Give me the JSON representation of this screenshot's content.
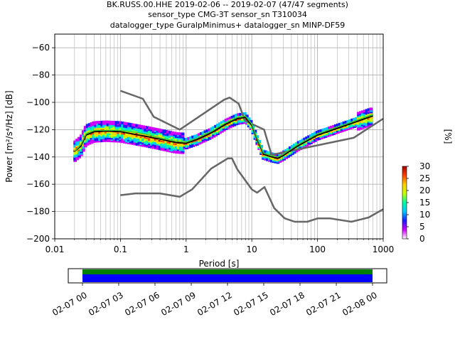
{
  "chart_data": {
    "type": "line",
    "title_lines": [
      "BK.RUSS.00.HHE   2019-02-06 -- 2019-02-07  (47/47 segments)",
      "sensor_type CMG-3T sensor_sn T310034",
      "datalogger_type GuralpMinimus+ datalogger_sn MINP-DF59"
    ],
    "xlabel": "Period [s]",
    "ylabel": "Power [m²/s⁴/Hz] [dB]",
    "x_scale": "log",
    "xlim": [
      0.01,
      1000
    ],
    "ylim": [
      -200,
      -50
    ],
    "x_ticks": [
      {
        "value": 0.01,
        "label": "0.01"
      },
      {
        "value": 0.1,
        "label": "0.1"
      },
      {
        "value": 1,
        "label": "1"
      },
      {
        "value": 10,
        "label": "10"
      },
      {
        "value": 100,
        "label": "100"
      },
      {
        "value": 1000,
        "label": "1000"
      }
    ],
    "y_ticks": [
      {
        "value": -60,
        "label": "−60"
      },
      {
        "value": -80,
        "label": "−80"
      },
      {
        "value": -100,
        "label": "−100"
      },
      {
        "value": -120,
        "label": "−120"
      },
      {
        "value": -140,
        "label": "−140"
      },
      {
        "value": -160,
        "label": "−160"
      },
      {
        "value": -180,
        "label": "−180"
      },
      {
        "value": -200,
        "label": "−200"
      }
    ],
    "grid": true,
    "series": [
      {
        "role": "high_noise_model",
        "color": "#666666",
        "points": [
          [
            0.1,
            -91.5
          ],
          [
            0.22,
            -97.4
          ],
          [
            0.32,
            -110.5
          ],
          [
            0.8,
            -120
          ],
          [
            3.8,
            -98
          ],
          [
            4.6,
            -96.5
          ],
          [
            6.3,
            -101
          ],
          [
            7.9,
            -113.5
          ],
          [
            15.4,
            -120
          ],
          [
            20,
            -138.5
          ],
          [
            354.8,
            -126
          ],
          [
            1000,
            -112
          ]
        ]
      },
      {
        "role": "low_noise_model",
        "color": "#666666",
        "points": [
          [
            0.1,
            -168
          ],
          [
            0.17,
            -166.7
          ],
          [
            0.4,
            -166.7
          ],
          [
            0.8,
            -169.2
          ],
          [
            1.24,
            -163.7
          ],
          [
            2.4,
            -148.6
          ],
          [
            4.3,
            -141.1
          ],
          [
            5,
            -141.1
          ],
          [
            6,
            -149
          ],
          [
            10,
            -163.8
          ],
          [
            12,
            -166.2
          ],
          [
            15.6,
            -162.1
          ],
          [
            21.9,
            -177.5
          ],
          [
            31.6,
            -185
          ],
          [
            45,
            -187.5
          ],
          [
            70,
            -187.5
          ],
          [
            101,
            -185
          ],
          [
            154,
            -185
          ],
          [
            328,
            -187.5
          ],
          [
            600,
            -184.4
          ],
          [
            1000,
            -178.3
          ]
        ]
      },
      {
        "role": "mean_psd",
        "color": "#000000",
        "points": [
          [
            0.02,
            -136
          ],
          [
            0.025,
            -132
          ],
          [
            0.03,
            -124
          ],
          [
            0.04,
            -121.5
          ],
          [
            0.06,
            -121
          ],
          [
            0.1,
            -121.5
          ],
          [
            0.15,
            -123
          ],
          [
            0.25,
            -125
          ],
          [
            0.4,
            -127
          ],
          [
            0.7,
            -129.5
          ],
          [
            1,
            -130
          ],
          [
            1.5,
            -127
          ],
          [
            2.5,
            -122
          ],
          [
            4,
            -116
          ],
          [
            6,
            -112
          ],
          [
            8,
            -111
          ],
          [
            10,
            -117
          ],
          [
            12,
            -127
          ],
          [
            15,
            -138
          ],
          [
            20,
            -140
          ],
          [
            25,
            -141
          ],
          [
            30,
            -139
          ],
          [
            50,
            -132
          ],
          [
            100,
            -124
          ],
          [
            200,
            -119
          ],
          [
            350,
            -115
          ],
          [
            600,
            -111
          ],
          [
            700,
            -110
          ]
        ]
      },
      {
        "role": "mode_psd",
        "color": "#2ecc40",
        "points": [
          [
            0.02,
            -136
          ],
          [
            0.025,
            -131
          ],
          [
            0.03,
            -123
          ],
          [
            0.04,
            -120.5
          ],
          [
            0.06,
            -120.5
          ],
          [
            0.1,
            -120.5
          ],
          [
            0.15,
            -121.5
          ],
          [
            0.25,
            -123.5
          ],
          [
            0.4,
            -126
          ],
          [
            0.7,
            -128.5
          ],
          [
            1,
            -129
          ],
          [
            1.5,
            -126
          ],
          [
            2.5,
            -121
          ],
          [
            4,
            -115
          ],
          [
            6,
            -111
          ],
          [
            8,
            -110
          ],
          [
            10,
            -116
          ],
          [
            12,
            -126
          ],
          [
            15,
            -137
          ],
          [
            20,
            -139
          ],
          [
            25,
            -140
          ],
          [
            30,
            -138
          ],
          [
            50,
            -131
          ],
          [
            100,
            -123
          ],
          [
            200,
            -118
          ],
          [
            350,
            -114
          ],
          [
            600,
            -110
          ],
          [
            700,
            -109
          ]
        ]
      }
    ],
    "colorbar": {
      "label": "[%]",
      "min": 0,
      "max": 30,
      "ticks": [
        "0",
        "5",
        "10",
        "15",
        "20",
        "25",
        "30"
      ],
      "colors": [
        "#ffffff",
        "#d200ff",
        "#1a1aff",
        "#00c8ff",
        "#00ffa0",
        "#c8ff00",
        "#ffd000",
        "#ff4000",
        "#a00000"
      ]
    },
    "coverage": {
      "tick_labels": [
        "02-07 00",
        "02-07 03",
        "02-07 06",
        "02-07 09",
        "02-07 12",
        "02-07 15",
        "02-07 18",
        "02-07 21",
        "02-08 00"
      ],
      "colors": {
        "data": "#0000ff",
        "segments": "#008000"
      }
    }
  }
}
